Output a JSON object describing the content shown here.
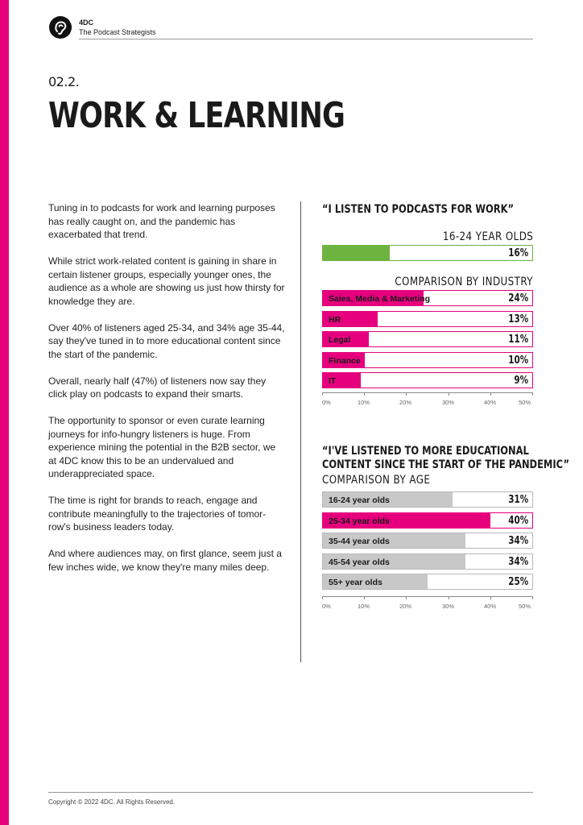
{
  "colors": {
    "accent": "#e6007e",
    "green": "#6db33f",
    "grey": "#c8c8c8"
  },
  "header": {
    "brand": "4DC",
    "tagline": "The Podcast Strategists",
    "logo_icon": "ear-logo-icon"
  },
  "section_number": "02.2.",
  "title": "WORK & LEARNING",
  "paragraphs": [
    "Tuning in to podcasts for work and learning purposes has really caught on, and the pandemic has exacerbated that trend.",
    "While strict work-related content is gaining in share in certain listener groups, especially younger ones, the audience as a whole are showing us just how thirsty for knowledge they are.",
    "Over 40% of listeners aged 25-34, and 34% age 35-44, say they've tuned in to more educational content since the start of the pandemic.",
    "Overall, nearly half (47%) of listeners now say they click play on podcasts to expand their smarts.",
    "The opportunity to sponsor or even curate learning journeys for info-hungry listeners is huge. From experience mining the potential in the B2B sector, we at 4DC know this to be an undervalued and underappreciated space.",
    "The time is right for brands to reach, engage and contribute meaningfully to the trajectories of tomor-row's business leaders today.",
    "And where audiences may, on first glance, seem just a few inches wide, we know they're many miles deep."
  ],
  "chart_data": [
    {
      "type": "bar",
      "title": "“I LISTEN TO PODCASTS FOR WORK”",
      "subtitle": "16-24 YEAR OLDS",
      "categories": [
        ""
      ],
      "values": [
        16
      ],
      "value_labels": [
        "16%"
      ],
      "xlim": [
        0,
        50
      ],
      "color": "#6db33f"
    },
    {
      "type": "bar",
      "subtitle": "COMPARISON BY INDUSTRY",
      "categories": [
        "Sales, Media & Marketing",
        "HR",
        "Legal",
        "Finance",
        "IT"
      ],
      "values": [
        24,
        13,
        11,
        10,
        9
      ],
      "value_labels": [
        "24%",
        "13%",
        "11%",
        "10%",
        "9%"
      ],
      "xlim": [
        0,
        50
      ],
      "ticks": [
        "0%",
        "10%",
        "20%",
        "30%",
        "40%",
        "50%"
      ],
      "color": "#e6007e"
    },
    {
      "type": "bar",
      "title_line1": "“I'VE LISTENED TO MORE EDUCATIONAL",
      "title_line2": "CONTENT SINCE THE START OF THE PANDEMIC”",
      "subtitle": "COMPARISON BY AGE",
      "categories": [
        "16-24 year olds",
        "25-34 year olds",
        "35-44 year olds",
        "45-54 year olds",
        "55+ year olds"
      ],
      "values": [
        31,
        40,
        34,
        34,
        25
      ],
      "value_labels": [
        "31%",
        "40%",
        "34%",
        "34%",
        "25%"
      ],
      "highlight": "25-34 year olds",
      "xlim": [
        0,
        50
      ],
      "ticks": [
        "0%",
        "10%",
        "20%",
        "30%",
        "40%",
        "50%"
      ],
      "color": "#c8c8c8",
      "highlight_color": "#e6007e"
    }
  ],
  "footer": {
    "copyright": "Copyright © 2022 4DC. All Rights Reserved."
  }
}
